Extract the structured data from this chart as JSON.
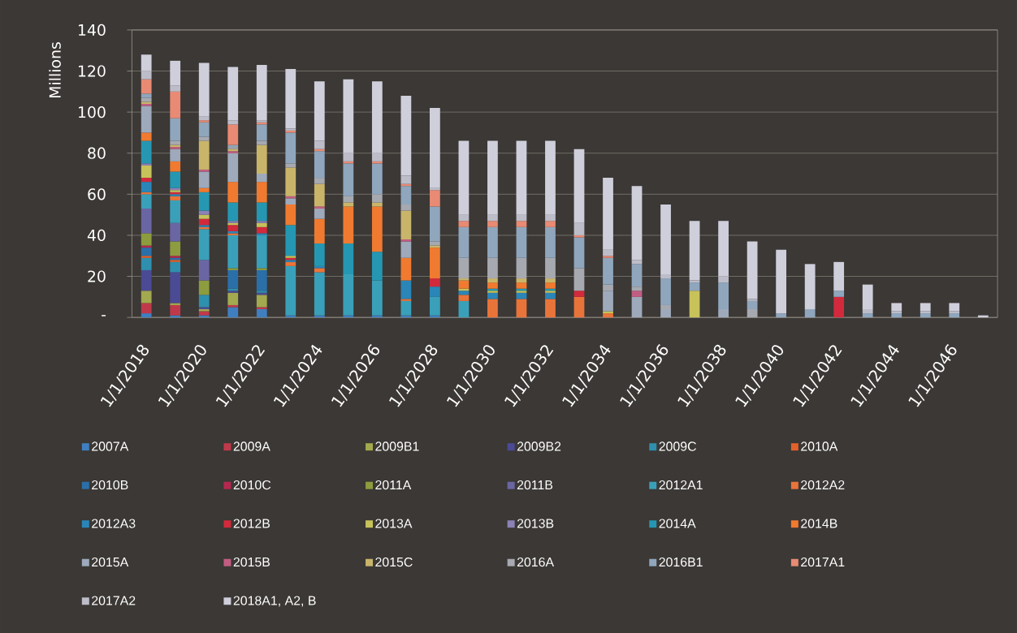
{
  "chart_data": {
    "type": "bar",
    "stacked": true,
    "ylabel": "Millions",
    "categories": [
      "1/1/2018",
      null,
      "1/1/2020",
      null,
      "1/1/2022",
      null,
      "1/1/2024",
      null,
      "1/1/2026",
      null,
      "1/1/2028",
      null,
      "1/1/2030",
      null,
      "1/1/2032",
      null,
      "1/1/2034",
      null,
      "1/1/2036",
      null,
      "1/1/2038",
      null,
      "1/1/2040",
      null,
      "1/1/2042",
      null,
      "1/1/2044",
      null,
      "1/1/2046",
      null
    ],
    "ylim": [
      0,
      140
    ],
    "yticks": [
      {
        "value": 0,
        "label": "-"
      },
      20,
      40,
      60,
      80,
      100,
      120,
      140
    ],
    "grid": "y",
    "legend": "bottom",
    "series": [
      {
        "name": "2007A",
        "color": "#3f7fbf",
        "values": [
          2,
          1,
          1,
          5,
          4,
          1,
          1,
          1,
          1,
          1,
          1,
          null,
          null,
          null,
          null,
          null,
          null,
          null,
          null,
          null,
          null,
          null,
          null,
          null,
          null,
          null,
          null,
          null,
          null,
          null
        ]
      },
      {
        "name": "2009A",
        "color": "#c0394b",
        "values": [
          5,
          5,
          2,
          1,
          1,
          null,
          null,
          null,
          null,
          null,
          null,
          null,
          null,
          null,
          null,
          null,
          null,
          null,
          null,
          null,
          null,
          null,
          null,
          null,
          null,
          null,
          null,
          null,
          null,
          null
        ]
      },
      {
        "name": "2009B1",
        "color": "#a3a94e",
        "values": [
          6,
          1,
          1,
          6,
          6,
          null,
          null,
          null,
          null,
          null,
          null,
          null,
          null,
          null,
          null,
          null,
          null,
          null,
          null,
          null,
          null,
          null,
          null,
          null,
          null,
          null,
          null,
          null,
          null,
          null
        ]
      },
      {
        "name": "2009B2",
        "color": "#4b4a95",
        "values": [
          10,
          15,
          1,
          1,
          1,
          null,
          null,
          null,
          null,
          null,
          null,
          null,
          null,
          null,
          null,
          null,
          null,
          null,
          null,
          null,
          null,
          null,
          null,
          null,
          null,
          null,
          null,
          null,
          null,
          null
        ]
      },
      {
        "name": "2009C",
        "color": "#2f8fae",
        "values": [
          6,
          5,
          6,
          1,
          1,
          null,
          null,
          null,
          null,
          null,
          null,
          null,
          null,
          null,
          null,
          null,
          null,
          null,
          null,
          null,
          null,
          null,
          null,
          null,
          null,
          null,
          null,
          null,
          null,
          null
        ]
      },
      {
        "name": "2010A",
        "color": "#e2622b",
        "values": [
          1,
          1,
          null,
          null,
          null,
          null,
          null,
          null,
          null,
          null,
          null,
          null,
          null,
          null,
          null,
          null,
          null,
          null,
          null,
          null,
          null,
          null,
          null,
          null,
          null,
          null,
          null,
          null,
          null,
          null
        ]
      },
      {
        "name": "2010B",
        "color": "#2b6fa8",
        "values": [
          4,
          1,
          null,
          9,
          10,
          null,
          null,
          null,
          null,
          null,
          null,
          null,
          null,
          null,
          null,
          null,
          null,
          null,
          null,
          null,
          null,
          null,
          null,
          null,
          null,
          null,
          null,
          null,
          null,
          null
        ]
      },
      {
        "name": "2010C",
        "color": "#b4284f",
        "values": [
          1,
          1,
          null,
          null,
          null,
          null,
          null,
          null,
          null,
          null,
          null,
          null,
          null,
          null,
          null,
          null,
          null,
          null,
          null,
          null,
          null,
          null,
          null,
          null,
          null,
          null,
          null,
          null,
          null,
          null
        ]
      },
      {
        "name": "2011A",
        "color": "#8d9c3e",
        "values": [
          6,
          7,
          7,
          1,
          1,
          null,
          null,
          null,
          null,
          null,
          null,
          null,
          null,
          null,
          null,
          null,
          null,
          null,
          null,
          null,
          null,
          null,
          null,
          null,
          null,
          null,
          null,
          null,
          null,
          null
        ]
      },
      {
        "name": "2011B",
        "color": "#6a66a3",
        "values": [
          12,
          9,
          10,
          null,
          null,
          null,
          null,
          null,
          null,
          null,
          null,
          null,
          null,
          null,
          null,
          null,
          null,
          null,
          null,
          null,
          null,
          null,
          null,
          null,
          null,
          null,
          null,
          null,
          null,
          null
        ]
      },
      {
        "name": "2012A1",
        "color": "#3aa0b9",
        "values": [
          7,
          11,
          15,
          16,
          16,
          24,
          21,
          20,
          17,
          7,
          9,
          8,
          null,
          null,
          null,
          null,
          null,
          null,
          null,
          null,
          null,
          null,
          null,
          null,
          null,
          null,
          null,
          null,
          null,
          null
        ]
      },
      {
        "name": "2012A2",
        "color": "#e9743a",
        "values": [
          1,
          2,
          1,
          1,
          null,
          2,
          2,
          null,
          null,
          1,
          null,
          3,
          9,
          9,
          9,
          10,
          2,
          null,
          null,
          null,
          null,
          null,
          null,
          null,
          null,
          null,
          null,
          null,
          null,
          null
        ]
      },
      {
        "name": "2012A3",
        "color": "#2a86b8",
        "values": [
          5,
          1,
          1,
          1,
          1,
          1,
          1,
          null,
          null,
          9,
          5,
          2,
          3,
          3,
          3,
          null,
          null,
          null,
          null,
          null,
          null,
          null,
          null,
          null,
          null,
          null,
          null,
          null,
          null,
          null
        ]
      },
      {
        "name": "2012B",
        "color": "#d22a3c",
        "values": [
          2,
          1,
          3,
          3,
          3,
          1,
          null,
          null,
          null,
          null,
          4,
          null,
          null,
          null,
          null,
          3,
          null,
          null,
          null,
          null,
          null,
          null,
          null,
          null,
          10,
          null,
          null,
          null,
          null,
          null
        ]
      },
      {
        "name": "2013A",
        "color": "#c7c25a",
        "values": [
          6,
          1,
          2,
          1,
          2,
          1,
          null,
          null,
          null,
          null,
          null,
          1,
          1,
          1,
          1,
          null,
          1,
          null,
          null,
          13,
          null,
          null,
          null,
          null,
          null,
          null,
          null,
          null,
          null,
          null
        ]
      },
      {
        "name": "2013B",
        "color": "#8c82b5",
        "values": [
          1,
          1,
          2,
          1,
          1,
          null,
          null,
          null,
          null,
          null,
          null,
          null,
          null,
          null,
          null,
          null,
          null,
          null,
          null,
          null,
          null,
          null,
          null,
          null,
          null,
          null,
          null,
          null,
          null,
          null
        ]
      },
      {
        "name": "2014A",
        "color": "#2597b2",
        "values": [
          11,
          8,
          9,
          9,
          9,
          15,
          11,
          15,
          14,
          null,
          null,
          null,
          1,
          1,
          1,
          null,
          null,
          null,
          null,
          null,
          null,
          null,
          null,
          null,
          null,
          null,
          null,
          null,
          null,
          null
        ]
      },
      {
        "name": "2014B",
        "color": "#f07a30",
        "values": [
          4,
          5,
          2,
          10,
          10,
          10,
          12,
          18,
          22,
          11,
          15,
          4,
          3,
          3,
          3,
          null,
          null,
          null,
          null,
          null,
          null,
          null,
          null,
          null,
          null,
          null,
          null,
          null,
          null,
          null
        ]
      },
      {
        "name": "2015A",
        "color": "#9eaabb",
        "values": [
          13,
          6,
          8,
          14,
          4,
          3,
          5,
          null,
          null,
          8,
          null,
          null,
          null,
          null,
          null,
          null,
          10,
          10,
          4,
          null,
          4,
          null,
          null,
          null,
          null,
          null,
          null,
          null,
          null,
          null
        ]
      },
      {
        "name": "2015B",
        "color": "#c25d82",
        "values": [
          1,
          1,
          1,
          1,
          null,
          1,
          1,
          null,
          null,
          1,
          null,
          null,
          null,
          null,
          null,
          null,
          null,
          3,
          null,
          null,
          null,
          null,
          null,
          null,
          null,
          null,
          null,
          null,
          null,
          null
        ]
      },
      {
        "name": "2015C",
        "color": "#c9b56a",
        "values": [
          1,
          1,
          14,
          1,
          14,
          14,
          11,
          2,
          2,
          14,
          1,
          1,
          2,
          2,
          2,
          null,
          null,
          null,
          null,
          null,
          null,
          null,
          null,
          null,
          null,
          null,
          null,
          null,
          null,
          null
        ]
      },
      {
        "name": "2016A",
        "color": "#a7a9b0",
        "values": [
          2,
          2,
          2,
          1,
          2,
          2,
          3,
          3,
          4,
          3,
          2,
          10,
          10,
          10,
          10,
          11,
          3,
          2,
          2,
          null,
          null,
          4,
          null,
          null,
          null,
          null,
          null,
          null,
          null,
          null
        ]
      },
      {
        "name": "2016B1",
        "color": "#8fa6bd",
        "values": [
          2,
          11,
          7,
          1,
          8,
          15,
          13,
          16,
          15,
          9,
          17,
          15,
          15,
          15,
          15,
          15,
          13,
          11,
          13,
          4,
          13,
          4,
          2,
          4,
          3,
          2,
          2,
          2,
          2,
          null
        ]
      },
      {
        "name": "2017A1",
        "color": "#e88a74",
        "values": [
          7,
          13,
          1,
          10,
          1,
          1,
          1,
          1,
          1,
          1,
          8,
          3,
          3,
          3,
          3,
          1,
          1,
          null,
          null,
          null,
          null,
          null,
          null,
          null,
          null,
          null,
          null,
          null,
          null,
          null
        ]
      },
      {
        "name": "2017A2",
        "color": "#bdbdca",
        "values": [
          4,
          3,
          2,
          2,
          1,
          1,
          4,
          4,
          4,
          4,
          1,
          3,
          3,
          3,
          3,
          6,
          3,
          2,
          2,
          1,
          3,
          1,
          null,
          null,
          null,
          2,
          1,
          1,
          1,
          null
        ]
      },
      {
        "name": "2018A1, A2, B",
        "color": "#cfcedb",
        "values": [
          8,
          12,
          26,
          26,
          27,
          29,
          29,
          36,
          35,
          39,
          39,
          36,
          36,
          36,
          36,
          36,
          35,
          36,
          34,
          29,
          27,
          28,
          31,
          22,
          14,
          12,
          4,
          4,
          4,
          1
        ]
      }
    ]
  }
}
